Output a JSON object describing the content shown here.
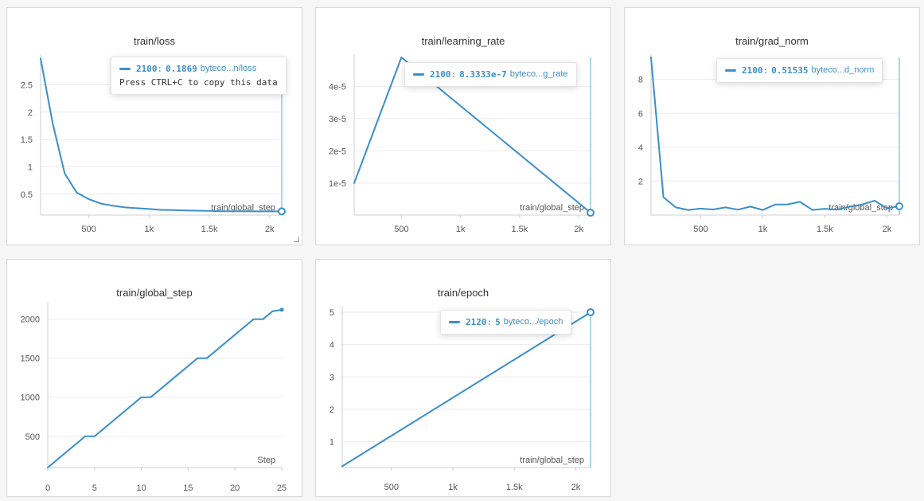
{
  "theme": {
    "line": "#3a8fca",
    "grid": "#ebebeb",
    "axis": "#cfcfcf",
    "tick_text": "#555555",
    "cursor": "#4fb3d9"
  },
  "chart_data": [
    {
      "id": "loss",
      "type": "line",
      "title": "train/loss",
      "xlabel": "train/global_step",
      "xlim": [
        100,
        2100
      ],
      "ylim": [
        0.12,
        3.0
      ],
      "xticks": [
        500,
        1000,
        1500,
        2000
      ],
      "xtick_labels": [
        "500",
        "1k",
        "1.5k",
        "2k"
      ],
      "yticks": [
        0.5,
        1,
        1.5,
        2,
        2.5
      ],
      "ytick_labels": [
        "0.5",
        "1",
        "1.5",
        "2",
        "2.5"
      ],
      "x": [
        100,
        200,
        300,
        400,
        500,
        600,
        700,
        800,
        900,
        1000,
        1100,
        1200,
        1300,
        1400,
        1500,
        1600,
        1700,
        1800,
        1900,
        2000,
        2100
      ],
      "y": [
        2.98,
        1.8,
        0.88,
        0.53,
        0.41,
        0.33,
        0.29,
        0.26,
        0.245,
        0.23,
        0.215,
        0.21,
        0.205,
        0.2,
        0.195,
        0.19,
        0.19,
        0.188,
        0.187,
        0.187,
        0.1869
      ],
      "cursor_x": 2100,
      "tooltip": {
        "step": "2100",
        "value": "0.1869",
        "name": "byteco...n/loss",
        "hint": "Press CTRL+C to copy this data"
      }
    },
    {
      "id": "lr",
      "type": "line",
      "title": "train/learning_rate",
      "xlabel": "train/global_step",
      "xlim": [
        100,
        2100
      ],
      "ylim": [
        1e-07,
        4.9e-05
      ],
      "xticks": [
        500,
        1000,
        1500,
        2000
      ],
      "xtick_labels": [
        "500",
        "1k",
        "1.5k",
        "2k"
      ],
      "yticks": [
        1e-05,
        2e-05,
        3e-05,
        4e-05
      ],
      "ytick_labels": [
        "1e-5",
        "2e-5",
        "3e-5",
        "4e-5"
      ],
      "x": [
        100,
        500,
        2100
      ],
      "y": [
        1e-05,
        4.9e-05,
        8.3333e-07
      ],
      "cursor_x": 2100,
      "tooltip": {
        "step": "2100",
        "value": "8.3333e-7",
        "name": "byteco...g_rate"
      }
    },
    {
      "id": "grad",
      "type": "line",
      "title": "train/grad_norm",
      "xlabel": "train/global_step",
      "xlim": [
        100,
        2100
      ],
      "ylim": [
        0.0,
        9.3
      ],
      "xticks": [
        500,
        1000,
        1500,
        2000
      ],
      "xtick_labels": [
        "500",
        "1k",
        "1.5k",
        "2k"
      ],
      "yticks": [
        2,
        4,
        6,
        8
      ],
      "ytick_labels": [
        "2",
        "4",
        "6",
        "8"
      ],
      "x": [
        100,
        200,
        300,
        400,
        500,
        600,
        700,
        800,
        900,
        1000,
        1100,
        1200,
        1300,
        1400,
        1500,
        1600,
        1700,
        1800,
        1900,
        2000,
        2100
      ],
      "y": [
        9.3,
        1.05,
        0.45,
        0.3,
        0.38,
        0.33,
        0.45,
        0.32,
        0.5,
        0.3,
        0.62,
        0.63,
        0.78,
        0.3,
        0.37,
        0.32,
        0.5,
        0.62,
        0.85,
        0.4,
        0.51535
      ],
      "cursor_x": 2100,
      "tooltip": {
        "step": "2100",
        "value": "0.51535",
        "name": "byteco...d_norm"
      }
    },
    {
      "id": "gstep",
      "type": "line",
      "title": "train/global_step",
      "xlabel": "Step",
      "xlim": [
        0,
        25
      ],
      "ylim": [
        100,
        2170
      ],
      "xticks": [
        0,
        5,
        10,
        15,
        20,
        25
      ],
      "xtick_labels": [
        "0",
        "5",
        "10",
        "15",
        "20",
        "25"
      ],
      "yticks": [
        500,
        1000,
        1500,
        2000
      ],
      "ytick_labels": [
        "500",
        "1000",
        "1500",
        "2000"
      ],
      "x": [
        0,
        4,
        5,
        10,
        11,
        16,
        17,
        22,
        23,
        24,
        25
      ],
      "y": [
        100,
        500,
        500,
        1000,
        1000,
        1500,
        1500,
        2000,
        2000,
        2100,
        2120
      ],
      "end_dot": true
    },
    {
      "id": "epoch",
      "type": "line",
      "title": "train/epoch",
      "xlabel": "train/global_step",
      "xlim": [
        100,
        2120
      ],
      "ylim": [
        0.2,
        5.1
      ],
      "xticks": [
        500,
        1000,
        1500,
        2000
      ],
      "xtick_labels": [
        "500",
        "1k",
        "1.5k",
        "2k"
      ],
      "yticks": [
        1,
        2,
        3,
        4,
        5
      ],
      "ytick_labels": [
        "1",
        "2",
        "3",
        "4",
        "5"
      ],
      "x": [
        100,
        2120
      ],
      "y": [
        0.24,
        5
      ],
      "cursor_x": 2120,
      "tooltip": {
        "step": "2120",
        "value": "5",
        "name": "byteco.../epoch"
      }
    }
  ]
}
